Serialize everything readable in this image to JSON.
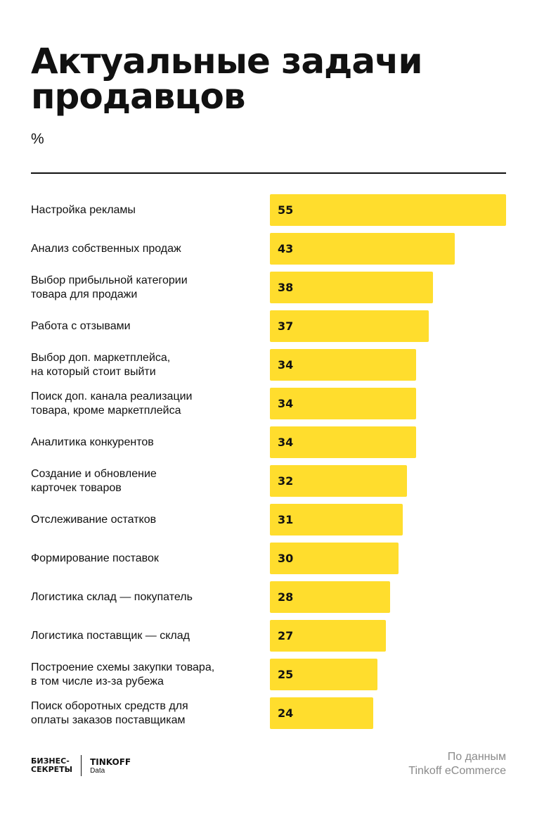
{
  "chart_data": {
    "type": "bar",
    "orientation": "horizontal",
    "title": "Актуальные задачи продавцов",
    "unit": "%",
    "categories": [
      "Настройка рекламы",
      "Анализ собственных продаж",
      "Выбор прибыльной категории\nтовара для продажи",
      "Работа с отзывами",
      "Выбор доп. маркетплейса,\nна который стоит выйти",
      "Поиск доп. канала реализации\nтовара, кроме маркетплейса",
      "Аналитика конкурентов",
      "Создание и обновление\nкарточек товаров",
      "Отслеживание остатков",
      "Формирование поставок",
      "Логистика склад — покупатель",
      "Логистика поставщик — склад",
      "Построение схемы закупки товара,\nв том числе из-за рубежа",
      "Поиск оборотных средств для\nоплаты заказов поставщикам"
    ],
    "values": [
      55,
      43,
      38,
      37,
      34,
      34,
      34,
      32,
      31,
      30,
      28,
      27,
      25,
      24
    ],
    "xlim": [
      0,
      55
    ],
    "grid": false,
    "bar_color": "#FFDD2D"
  },
  "footer": {
    "logo_left": "БИЗНЕС-\nСЕКРЕТЫ",
    "logo_right": "TINKOFF",
    "logo_right_sub": "Data",
    "source_line1": "По данным",
    "source_line2": "Tinkoff eCommerce"
  }
}
